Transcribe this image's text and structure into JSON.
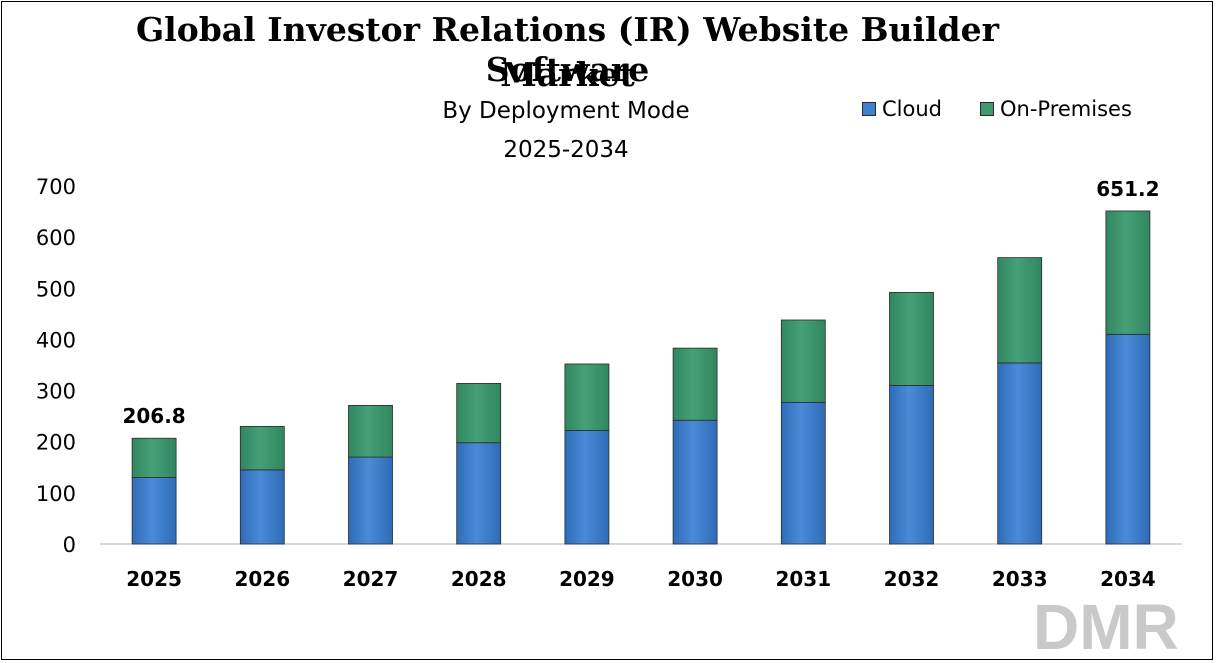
{
  "title_line1": "Global Investor Relations (IR) Website Builder Software",
  "title_line2": "Market",
  "subtitle": "By Deployment  Mode",
  "subtitle2": "2025-2034",
  "legend": [
    {
      "name": "Cloud",
      "color": "#3f7fcf"
    },
    {
      "name": "On-Premises",
      "color": "#3f9a70"
    }
  ],
  "logo_text": "DMR",
  "chart_data": {
    "type": "bar",
    "stacked": true,
    "categories": [
      "2025",
      "2026",
      "2027",
      "2028",
      "2029",
      "2030",
      "2031",
      "2032",
      "2033",
      "2034"
    ],
    "series": [
      {
        "name": "Cloud",
        "values": [
          130,
          145,
          170,
          198,
          222,
          242,
          277,
          310,
          354,
          410
        ],
        "color": "#3f7fcf"
      },
      {
        "name": "On-Premises",
        "values": [
          76.8,
          85,
          101,
          116,
          130,
          141,
          161,
          182,
          206,
          241.2
        ],
        "color": "#3f9a70"
      }
    ],
    "data_labels": [
      {
        "category": "2025",
        "text": "206.8"
      },
      {
        "category": "2034",
        "text": "651.2"
      }
    ],
    "yticks": [
      0,
      100,
      200,
      300,
      400,
      500,
      600,
      700
    ],
    "ylim": [
      0,
      700
    ],
    "grid": false,
    "legend_position": "top-right"
  }
}
